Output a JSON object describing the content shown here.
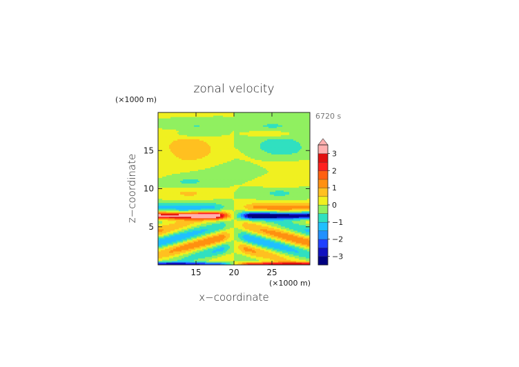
{
  "chart_data": {
    "type": "heatmap",
    "title": "zonal velocity",
    "time_label": "6720 s",
    "xlabel": "x−coordinate",
    "ylabel": "z−coordinate",
    "x_unit": "(×1000 m)",
    "y_unit": "(×1000 m)",
    "xlim": [
      10,
      30
    ],
    "ylim": [
      0,
      20
    ],
    "x_ticks": [
      15,
      20,
      25
    ],
    "y_ticks": [
      5,
      10,
      15
    ],
    "colorbar": {
      "tick_labels": [
        "3",
        "2",
        "1",
        "0",
        "−1",
        "−2",
        "−3"
      ],
      "tick_values": [
        3,
        2,
        1,
        0,
        -1,
        -2,
        -3
      ],
      "levels": [
        -3.5,
        -3,
        -2.5,
        -2,
        -1.5,
        -1,
        -0.5,
        0,
        0.5,
        1,
        1.5,
        2,
        2.5,
        3,
        3.5
      ],
      "colors": [
        "#000080",
        "#1010c0",
        "#2040ff",
        "#2090ff",
        "#20c0ff",
        "#30e0c0",
        "#90f060",
        "#f0f020",
        "#ffc020",
        "#ff9010",
        "#ff6010",
        "#ff2020",
        "#e01010",
        "#ffb0b0"
      ],
      "extend": "max"
    }
  }
}
